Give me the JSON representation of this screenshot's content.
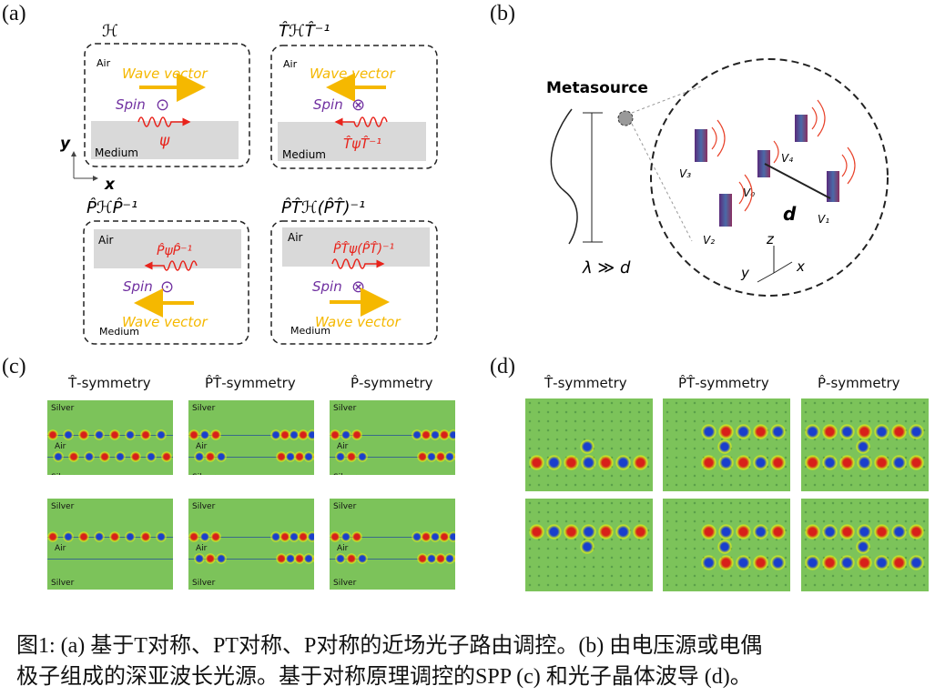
{
  "panels": {
    "a": {
      "label": "(a)",
      "axes": {
        "x": "x",
        "y": "y"
      },
      "boxes": [
        {
          "title": "ℋ",
          "top_material": "Air",
          "bottom_material": "Medium",
          "wave_vector": "Wave vector",
          "spin": "Spin",
          "spin_symbol": "⊙",
          "field": "ψ",
          "direction": "right"
        },
        {
          "title": "T̂ℋT̂⁻¹",
          "top_material": "Air",
          "bottom_material": "Medium",
          "wave_vector": "Wave vector",
          "spin": "Spin",
          "spin_symbol": "⊗",
          "field": "T̂ψT̂⁻¹",
          "direction": "left"
        },
        {
          "title": "P̂ℋP̂⁻¹",
          "top_material": "Medium",
          "bottom_material": "Air",
          "wave_vector": "Wave vector",
          "spin": "Spin",
          "spin_symbol": "⊙",
          "field": "P̂ψP̂⁻¹",
          "direction": "left"
        },
        {
          "title": "P̂T̂ℋ(P̂T̂)⁻¹",
          "top_material": "Medium",
          "bottom_material": "Air",
          "wave_vector": "Wave vector",
          "spin": "Spin",
          "spin_symbol": "⊗",
          "field": "P̂T̂ψ(P̂T̂)⁻¹",
          "direction": "right"
        }
      ]
    },
    "b": {
      "label": "(b)",
      "title": "Metasource",
      "relation": "λ ≫ d",
      "distance": "d",
      "sources": [
        "V₀",
        "V₁",
        "V₂",
        "V₃",
        "V₄"
      ],
      "axes": {
        "x": "x",
        "y": "y",
        "z": "z"
      }
    },
    "c": {
      "label": "(c)",
      "columns": [
        "T̂-symmetry",
        "P̂T̂-symmetry",
        "P̂-symmetry"
      ],
      "top_label": "Silver",
      "middle_label": "Air",
      "bottom_label": "Silver"
    },
    "d": {
      "label": "(d)",
      "columns": [
        "T̂-symmetry",
        "P̂T̂-symmetry",
        "P̂-symmetry"
      ]
    }
  },
  "caption": {
    "line1": "图1: (a) 基于T对称、PT对称、P对称的近场光子路由调控。(b) 由电压源或电偶",
    "line2": "极子组成的深亚波长光源。基于对称原理调控的SPP (c) 和光子晶体波导 (d)。"
  },
  "colors": {
    "wave_vector": "#f5b800",
    "spin": "#7030a0",
    "field": "#e8231b",
    "medium": "#d9d9d9",
    "field_bg": "#7cc35a"
  }
}
